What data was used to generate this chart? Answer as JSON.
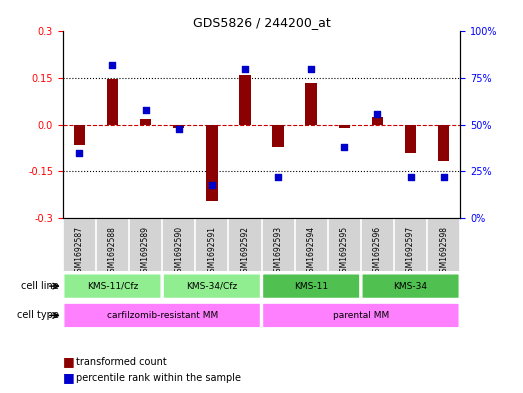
{
  "title": "GDS5826 / 244200_at",
  "samples": [
    "GSM1692587",
    "GSM1692588",
    "GSM1692589",
    "GSM1692590",
    "GSM1692591",
    "GSM1692592",
    "GSM1692593",
    "GSM1692594",
    "GSM1692595",
    "GSM1692596",
    "GSM1692597",
    "GSM1692598"
  ],
  "transformed_count": [
    -0.065,
    0.148,
    0.02,
    -0.01,
    -0.245,
    0.16,
    -0.07,
    0.133,
    -0.01,
    0.025,
    -0.09,
    -0.115
  ],
  "percentile_rank": [
    35,
    82,
    58,
    48,
    18,
    80,
    22,
    80,
    38,
    56,
    22,
    22
  ],
  "cell_lines": [
    {
      "label": "KMS-11/Cfz",
      "start": 0,
      "end": 3,
      "color": "#90EE90"
    },
    {
      "label": "KMS-34/Cfz",
      "start": 3,
      "end": 6,
      "color": "#90EE90"
    },
    {
      "label": "KMS-11",
      "start": 6,
      "end": 9,
      "color": "#50C050"
    },
    {
      "label": "KMS-34",
      "start": 9,
      "end": 12,
      "color": "#50C050"
    }
  ],
  "cell_types": [
    {
      "label": "carfilzomib-resistant MM",
      "start": 0,
      "end": 6,
      "color": "#FF80FF"
    },
    {
      "label": "parental MM",
      "start": 6,
      "end": 12,
      "color": "#FF80FF"
    }
  ],
  "ylim_left": [
    -0.3,
    0.3
  ],
  "ylim_right": [
    0,
    100
  ],
  "yticks_left": [
    -0.3,
    -0.15,
    0.0,
    0.15,
    0.3
  ],
  "yticks_right": [
    0,
    25,
    50,
    75,
    100
  ],
  "bar_color": "#8B0000",
  "dot_color": "#0000CC",
  "background_color": "#FFFFFF",
  "grid_color": "#000000",
  "zero_line_color": "#CC0000"
}
